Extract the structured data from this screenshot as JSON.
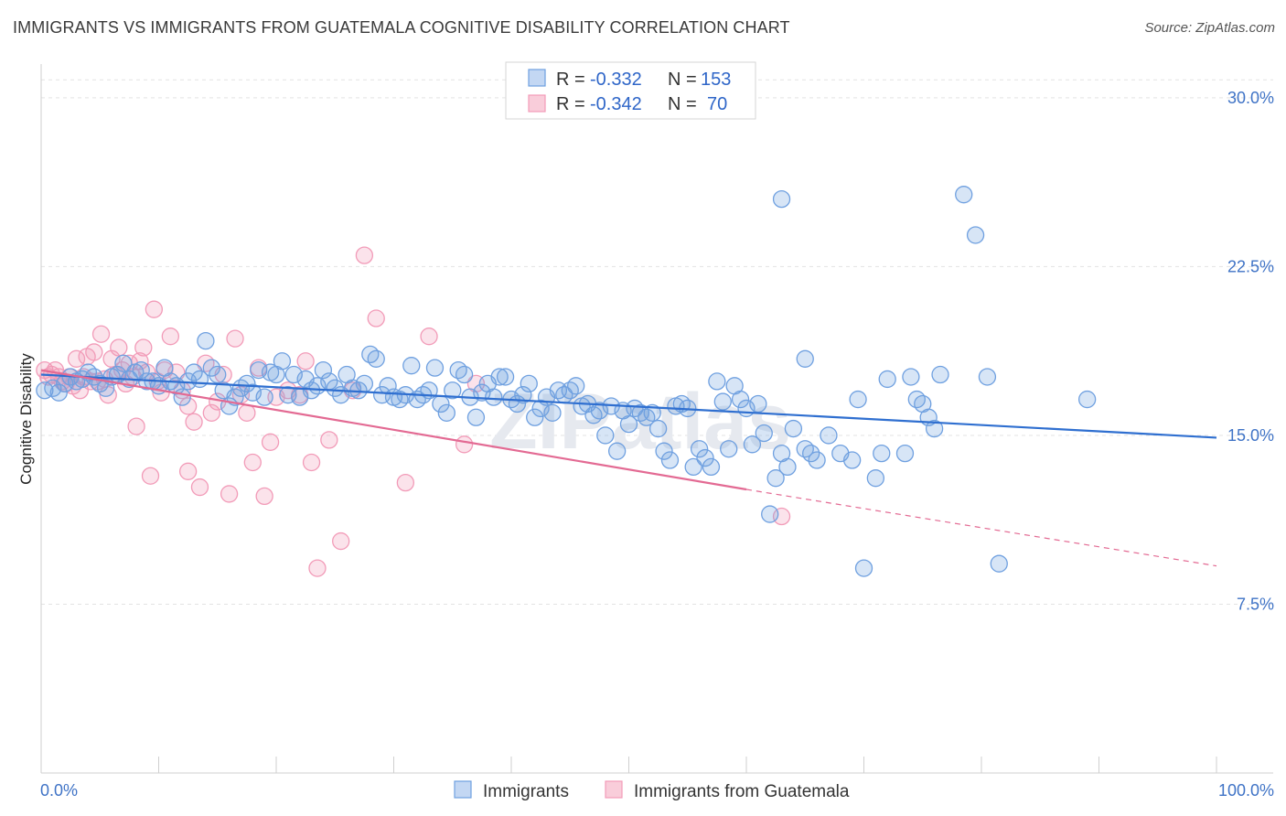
{
  "title": "IMMIGRANTS VS IMMIGRANTS FROM GUATEMALA COGNITIVE DISABILITY CORRELATION CHART",
  "source": "Source: ZipAtlas.com",
  "watermark": "ZIPatlas",
  "chart_data": {
    "type": "scatter",
    "ylabel": "Cognitive Disability",
    "xlim": [
      0,
      100
    ],
    "ylim": [
      0,
      31.5
    ],
    "x_tick_labels": [
      "0.0%",
      "100.0%"
    ],
    "y_ticks": [
      {
        "value": 7.5,
        "label": "7.5%"
      },
      {
        "value": 15.0,
        "label": "15.0%"
      },
      {
        "value": 22.5,
        "label": "22.5%"
      },
      {
        "value": 30.0,
        "label": "30.0%"
      }
    ],
    "grid": true,
    "legend_top": {
      "rows": [
        {
          "r_label": "R = ",
          "r_value": "-0.332",
          "n_label": "N = ",
          "n_value": "153"
        },
        {
          "r_label": "R = ",
          "r_value": "-0.342",
          "n_label": "N = ",
          "n_value": "70"
        }
      ]
    },
    "series": [
      {
        "name": "Immigrants",
        "color": "#6fa0e0",
        "line_color": "#2f6fd0",
        "trend": {
          "x0": 0,
          "y0": 17.7,
          "x1": 100,
          "y1": 14.9
        },
        "points": [
          [
            0.3,
            17.0
          ],
          [
            1.0,
            17.1
          ],
          [
            1.5,
            16.9
          ],
          [
            2.0,
            17.3
          ],
          [
            2.5,
            17.6
          ],
          [
            3.0,
            17.4
          ],
          [
            3.5,
            17.5
          ],
          [
            4.0,
            17.8
          ],
          [
            4.5,
            17.6
          ],
          [
            5.0,
            17.3
          ],
          [
            5.5,
            17.1
          ],
          [
            6.0,
            17.6
          ],
          [
            6.5,
            17.7
          ],
          [
            7.0,
            18.2
          ],
          [
            7.5,
            17.5
          ],
          [
            8.0,
            17.8
          ],
          [
            8.5,
            17.9
          ],
          [
            9.0,
            17.4
          ],
          [
            9.5,
            17.4
          ],
          [
            10.0,
            17.2
          ],
          [
            10.5,
            18.0
          ],
          [
            11.0,
            17.4
          ],
          [
            11.5,
            17.2
          ],
          [
            12.0,
            16.7
          ],
          [
            12.5,
            17.4
          ],
          [
            13.0,
            17.8
          ],
          [
            13.5,
            17.5
          ],
          [
            14.0,
            19.2
          ],
          [
            14.5,
            18.0
          ],
          [
            15.0,
            17.7
          ],
          [
            15.5,
            17.0
          ],
          [
            16.0,
            16.3
          ],
          [
            16.5,
            16.7
          ],
          [
            17.0,
            17.1
          ],
          [
            17.5,
            17.3
          ],
          [
            18.0,
            16.9
          ],
          [
            18.5,
            17.9
          ],
          [
            19.0,
            16.7
          ],
          [
            19.5,
            17.8
          ],
          [
            20.0,
            17.7
          ],
          [
            20.5,
            18.3
          ],
          [
            21.0,
            16.8
          ],
          [
            21.5,
            17.7
          ],
          [
            22.0,
            16.7
          ],
          [
            22.5,
            17.5
          ],
          [
            23.0,
            17.0
          ],
          [
            23.5,
            17.2
          ],
          [
            24.0,
            17.9
          ],
          [
            24.5,
            17.4
          ],
          [
            25.0,
            17.1
          ],
          [
            25.5,
            16.8
          ],
          [
            26.0,
            17.7
          ],
          [
            26.5,
            17.1
          ],
          [
            27.0,
            17.0
          ],
          [
            27.5,
            17.3
          ],
          [
            28.0,
            18.6
          ],
          [
            28.5,
            18.4
          ],
          [
            29.0,
            16.8
          ],
          [
            29.5,
            17.2
          ],
          [
            30.0,
            16.7
          ],
          [
            30.5,
            16.6
          ],
          [
            31.0,
            16.8
          ],
          [
            31.5,
            18.1
          ],
          [
            32.0,
            16.6
          ],
          [
            32.5,
            16.8
          ],
          [
            33.0,
            17.0
          ],
          [
            33.5,
            18.0
          ],
          [
            34.0,
            16.4
          ],
          [
            34.5,
            16.0
          ],
          [
            35.0,
            17.0
          ],
          [
            35.5,
            17.9
          ],
          [
            36.0,
            17.7
          ],
          [
            36.5,
            16.7
          ],
          [
            37.0,
            15.8
          ],
          [
            37.5,
            16.9
          ],
          [
            38.0,
            17.3
          ],
          [
            38.5,
            16.7
          ],
          [
            39.0,
            17.6
          ],
          [
            39.5,
            17.6
          ],
          [
            40.0,
            16.6
          ],
          [
            40.5,
            16.4
          ],
          [
            41.0,
            16.8
          ],
          [
            41.5,
            17.3
          ],
          [
            42.0,
            15.8
          ],
          [
            42.5,
            16.2
          ],
          [
            43.0,
            16.7
          ],
          [
            43.5,
            16.0
          ],
          [
            44.0,
            17.0
          ],
          [
            44.5,
            16.8
          ],
          [
            45.0,
            17.0
          ],
          [
            45.5,
            17.2
          ],
          [
            46.0,
            16.3
          ],
          [
            46.5,
            16.4
          ],
          [
            47.0,
            15.9
          ],
          [
            47.5,
            16.1
          ],
          [
            48.0,
            15.0
          ],
          [
            48.5,
            16.3
          ],
          [
            49.0,
            14.3
          ],
          [
            49.5,
            16.1
          ],
          [
            50.0,
            15.5
          ],
          [
            50.5,
            16.2
          ],
          [
            51.0,
            16.0
          ],
          [
            51.5,
            15.8
          ],
          [
            52.0,
            16.0
          ],
          [
            52.5,
            15.3
          ],
          [
            53.0,
            14.3
          ],
          [
            53.5,
            13.9
          ],
          [
            54.0,
            16.3
          ],
          [
            54.5,
            16.4
          ],
          [
            55.0,
            16.2
          ],
          [
            55.5,
            13.6
          ],
          [
            56.0,
            14.4
          ],
          [
            56.5,
            14.0
          ],
          [
            57.0,
            13.6
          ],
          [
            57.5,
            17.4
          ],
          [
            58.0,
            16.5
          ],
          [
            58.5,
            14.4
          ],
          [
            59.0,
            17.2
          ],
          [
            59.5,
            16.6
          ],
          [
            60.0,
            16.2
          ],
          [
            60.5,
            14.6
          ],
          [
            61.0,
            16.4
          ],
          [
            61.5,
            15.1
          ],
          [
            62.0,
            11.5
          ],
          [
            62.5,
            13.1
          ],
          [
            63.0,
            14.2
          ],
          [
            63.5,
            13.6
          ],
          [
            64.0,
            15.3
          ],
          [
            65.0,
            14.4
          ],
          [
            65.5,
            14.2
          ],
          [
            66.0,
            13.9
          ],
          [
            67.0,
            15.0
          ],
          [
            68.0,
            14.2
          ],
          [
            69.0,
            13.9
          ],
          [
            69.5,
            16.6
          ],
          [
            70.0,
            9.1
          ],
          [
            71.0,
            13.1
          ],
          [
            71.5,
            14.2
          ],
          [
            72.0,
            17.5
          ],
          [
            73.5,
            14.2
          ],
          [
            74.0,
            17.6
          ],
          [
            74.5,
            16.6
          ],
          [
            75.0,
            16.4
          ],
          [
            75.5,
            15.8
          ],
          [
            76.0,
            15.3
          ],
          [
            76.5,
            17.7
          ],
          [
            78.5,
            25.7
          ],
          [
            79.5,
            23.9
          ],
          [
            80.5,
            17.6
          ],
          [
            81.5,
            9.3
          ],
          [
            63.0,
            25.5
          ],
          [
            65.0,
            18.4
          ],
          [
            89.0,
            16.6
          ]
        ]
      },
      {
        "name": "Immigrants from Guatemala",
        "color": "#f29bb8",
        "line_color": "#e36a93",
        "trend": {
          "x0": 0,
          "y0": 17.9,
          "x1": 60,
          "y1": 12.6
        },
        "trend_dashed": {
          "x0": 60,
          "y0": 12.6,
          "x1": 100,
          "y1": 9.2
        },
        "points": [
          [
            0.3,
            17.9
          ],
          [
            0.6,
            17.6
          ],
          [
            0.9,
            17.7
          ],
          [
            1.2,
            17.9
          ],
          [
            1.5,
            17.6
          ],
          [
            1.8,
            17.4
          ],
          [
            2.1,
            17.3
          ],
          [
            2.4,
            17.6
          ],
          [
            2.7,
            17.2
          ],
          [
            3.0,
            18.4
          ],
          [
            3.3,
            17.0
          ],
          [
            3.6,
            17.6
          ],
          [
            3.9,
            18.5
          ],
          [
            4.2,
            17.4
          ],
          [
            4.5,
            18.7
          ],
          [
            4.8,
            17.4
          ],
          [
            5.1,
            19.5
          ],
          [
            5.4,
            17.5
          ],
          [
            5.7,
            16.8
          ],
          [
            6.0,
            18.4
          ],
          [
            6.3,
            17.7
          ],
          [
            6.6,
            18.9
          ],
          [
            6.9,
            17.9
          ],
          [
            7.2,
            17.3
          ],
          [
            7.5,
            18.2
          ],
          [
            7.8,
            17.6
          ],
          [
            8.1,
            15.4
          ],
          [
            8.4,
            18.3
          ],
          [
            8.7,
            18.9
          ],
          [
            9.0,
            17.8
          ],
          [
            9.3,
            13.2
          ],
          [
            9.6,
            20.6
          ],
          [
            9.9,
            17.4
          ],
          [
            10.2,
            16.9
          ],
          [
            10.5,
            17.9
          ],
          [
            11.0,
            19.4
          ],
          [
            11.5,
            17.8
          ],
          [
            12.0,
            17.0
          ],
          [
            12.5,
            16.3
          ],
          [
            13.0,
            15.6
          ],
          [
            13.5,
            12.7
          ],
          [
            14.0,
            18.2
          ],
          [
            14.5,
            16.0
          ],
          [
            15.0,
            16.5
          ],
          [
            15.5,
            17.7
          ],
          [
            16.0,
            12.4
          ],
          [
            16.5,
            19.3
          ],
          [
            17.0,
            16.8
          ],
          [
            17.5,
            16.0
          ],
          [
            18.0,
            13.8
          ],
          [
            18.5,
            18.0
          ],
          [
            19.0,
            12.3
          ],
          [
            19.5,
            14.7
          ],
          [
            20.0,
            16.7
          ],
          [
            21.0,
            17.0
          ],
          [
            22.0,
            16.8
          ],
          [
            22.5,
            18.3
          ],
          [
            23.0,
            13.8
          ],
          [
            23.5,
            9.1
          ],
          [
            24.5,
            14.8
          ],
          [
            25.5,
            10.3
          ],
          [
            26.5,
            17.0
          ],
          [
            27.5,
            23.0
          ],
          [
            28.5,
            20.2
          ],
          [
            31.0,
            12.9
          ],
          [
            33.0,
            19.4
          ],
          [
            36.0,
            14.6
          ],
          [
            37.0,
            17.3
          ],
          [
            12.5,
            13.4
          ],
          [
            63.0,
            11.4
          ]
        ]
      }
    ]
  }
}
